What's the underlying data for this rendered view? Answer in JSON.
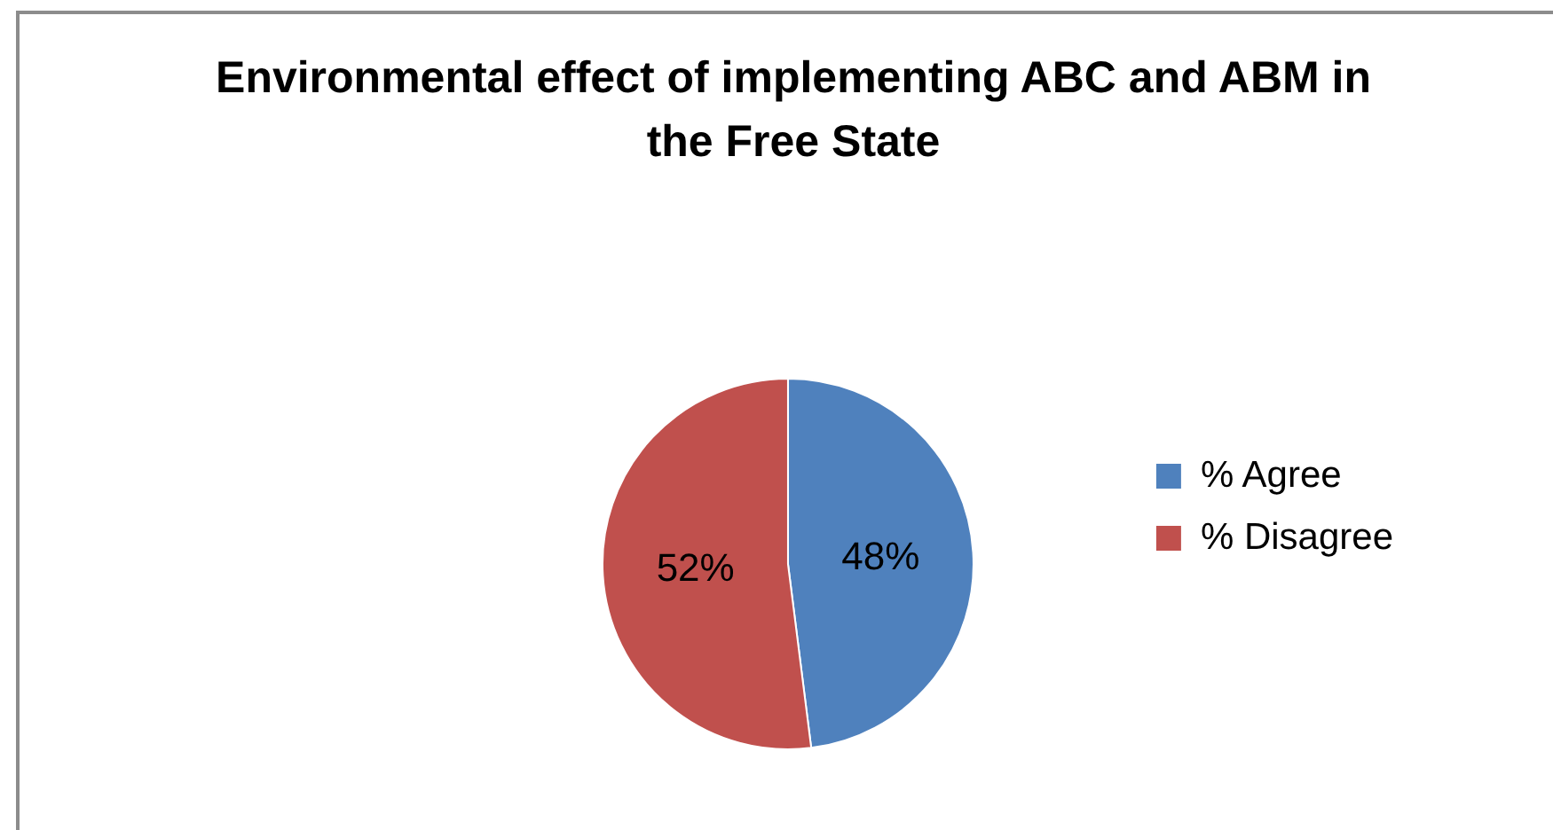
{
  "chart_data": {
    "type": "pie",
    "title": "Environmental effect of implementing ABC and ABM in the Free State",
    "categories": [
      "% Agree",
      "% Disagree"
    ],
    "values": [
      48,
      52
    ],
    "colors": [
      "#4f81bd",
      "#c0504d"
    ],
    "value_labels": [
      "48%",
      "52%"
    ],
    "legend": "right"
  }
}
